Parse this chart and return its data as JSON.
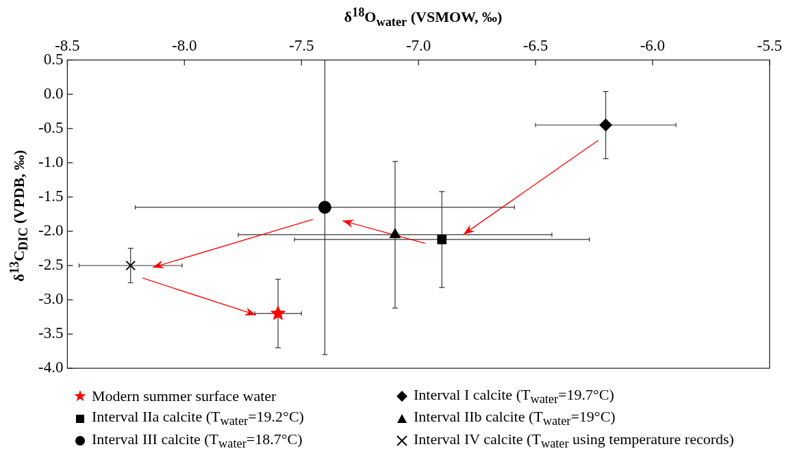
{
  "chart_data": {
    "type": "scatter",
    "xlabel": "δ$^{18}$O$_{water}$ (VSMOW, ‰)",
    "ylabel": "δ$^{13}$C$_{DIC}$ (VPDB, ‰)",
    "xlim": [
      -8.5,
      -5.5
    ],
    "xticks": [
      -8.5,
      {
        "value": -8,
        "label": "-8.0"
      },
      -7.5,
      {
        "value": -7,
        "label": "-7.0"
      },
      -6.5,
      {
        "value": -6,
        "label": "-6.0"
      },
      -5.5
    ],
    "ylim": [
      -4,
      0.5
    ],
    "yticks": [
      0.5,
      {
        "value": 0,
        "label": "0.0"
      },
      -0.5,
      {
        "value": -1,
        "label": "-1.0"
      },
      -1.5,
      {
        "value": -2,
        "label": "-2.0"
      },
      -2.5,
      {
        "value": -3,
        "label": "-3.0"
      },
      -3.5,
      {
        "value": -4,
        "label": "-4.0"
      }
    ],
    "legend": "bottom",
    "series": [
      {
        "name": "Modern summer surface water",
        "color": "#ff0000",
        "marker": "star",
        "x": [
          -7.6
        ],
        "values": [
          -3.2
        ],
        "errors": [
          0.5
        ],
        "xerrors": [
          0.1
        ]
      },
      {
        "name": "Interval I calcite (T$_{water}$=19.7°C)",
        "color": "#000000",
        "marker": "diamond",
        "x": [
          -6.2
        ],
        "values": [
          -0.45
        ],
        "errors": [
          0.49
        ],
        "xerrors": [
          0.3
        ]
      },
      {
        "name": "Interval IIa calcite (T$_{water}$=19.2°C)",
        "color": "#000000",
        "marker": "square",
        "x": [
          -6.9
        ],
        "values": [
          -2.12
        ],
        "errors": [
          0.7
        ],
        "xerrors": [
          0.63
        ]
      },
      {
        "name": "Interval IIb calcite (T$_{water}$=19°C)",
        "color": "#000000",
        "marker": "triangle",
        "x": [
          -7.1
        ],
        "values": [
          -2.05
        ],
        "errors": [
          1.07
        ],
        "xerrors": [
          0.67
        ]
      },
      {
        "name": "Interval III calcite (T$_{water}$=18.7°C)",
        "color": "#000000",
        "marker": "circle",
        "x": [
          -7.4
        ],
        "values": [
          -1.65
        ],
        "errors": [
          2.15
        ],
        "xerrors": [
          0.81
        ]
      },
      {
        "name": "Interval IV calcite (T$_{water}$ using temperature records)",
        "color": "#000000",
        "marker": "cross",
        "x": [
          -8.23
        ],
        "values": [
          -2.5
        ],
        "errors": [
          0.25
        ],
        "xerrors": [
          0.22
        ]
      }
    ]
  }
}
